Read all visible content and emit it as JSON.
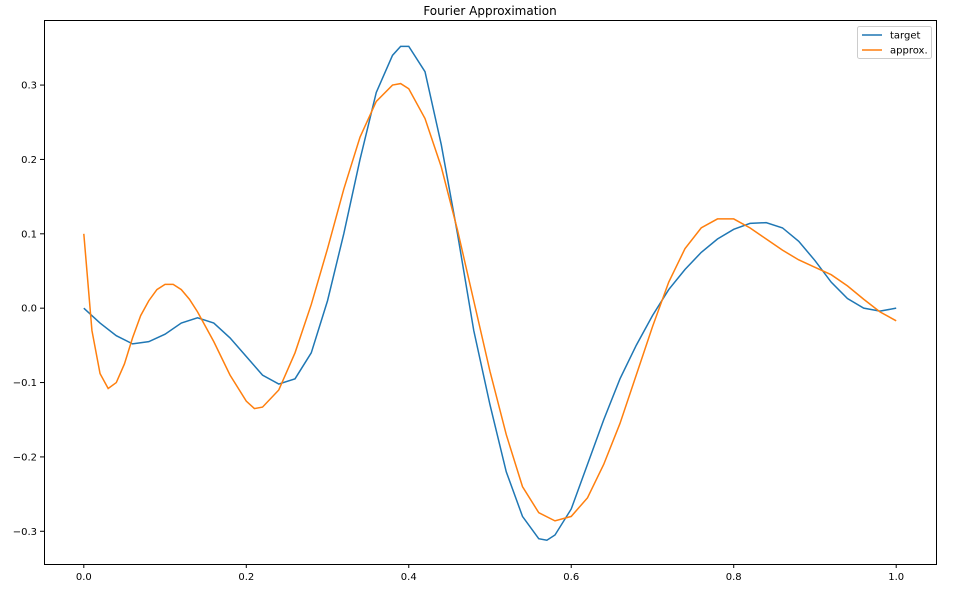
{
  "chart_data": {
    "type": "line",
    "title": "Fourier Approximation",
    "xlabel": "",
    "ylabel": "",
    "xlim": [
      -0.049,
      1.049
    ],
    "ylim": [
      -0.344,
      0.3875
    ],
    "xticks": [
      0.0,
      0.2,
      0.4,
      0.6,
      0.8,
      1.0
    ],
    "xtick_labels": [
      "0.0",
      "0.2",
      "0.4",
      "0.6",
      "0.8",
      "1.0"
    ],
    "yticks": [
      -0.3,
      -0.2,
      -0.1,
      0.0,
      0.1,
      0.2,
      0.3
    ],
    "ytick_labels": [
      "−0.3",
      "−0.2",
      "−0.1",
      "0.0",
      "0.1",
      "0.2",
      "0.3"
    ],
    "grid": false,
    "legend_position": "top-right",
    "series": [
      {
        "name": "target",
        "color": "#1f77b4",
        "x": [
          0,
          0.02,
          0.04,
          0.06,
          0.08,
          0.1,
          0.12,
          0.14,
          0.16,
          0.18,
          0.2,
          0.22,
          0.24,
          0.26,
          0.28,
          0.3,
          0.32,
          0.34,
          0.36,
          0.38,
          0.39,
          0.4,
          0.42,
          0.44,
          0.46,
          0.48,
          0.5,
          0.52,
          0.54,
          0.56,
          0.57,
          0.58,
          0.6,
          0.62,
          0.64,
          0.66,
          0.68,
          0.7,
          0.72,
          0.74,
          0.76,
          0.78,
          0.8,
          0.82,
          0.84,
          0.86,
          0.88,
          0.9,
          0.92,
          0.94,
          0.96,
          0.98,
          1.0
        ],
        "y": [
          0,
          -0.02,
          -0.037,
          -0.048,
          -0.045,
          -0.035,
          -0.02,
          -0.013,
          -0.02,
          -0.04,
          -0.065,
          -0.09,
          -0.102,
          -0.095,
          -0.06,
          0.01,
          0.1,
          0.2,
          0.29,
          0.34,
          0.352,
          0.352,
          0.318,
          0.22,
          0.1,
          -0.03,
          -0.13,
          -0.22,
          -0.28,
          -0.31,
          -0.312,
          -0.305,
          -0.27,
          -0.21,
          -0.15,
          -0.095,
          -0.05,
          -0.01,
          0.025,
          0.052,
          0.075,
          0.093,
          0.106,
          0.114,
          0.115,
          0.108,
          0.09,
          0.064,
          0.035,
          0.013,
          0.0,
          -0.004,
          0.0
        ]
      },
      {
        "name": "approx.",
        "color": "#ff7f0e",
        "x": [
          0,
          0.01,
          0.02,
          0.03,
          0.04,
          0.05,
          0.06,
          0.07,
          0.08,
          0.09,
          0.1,
          0.11,
          0.12,
          0.13,
          0.14,
          0.16,
          0.18,
          0.2,
          0.21,
          0.22,
          0.24,
          0.26,
          0.28,
          0.3,
          0.32,
          0.34,
          0.36,
          0.38,
          0.39,
          0.4,
          0.42,
          0.44,
          0.46,
          0.48,
          0.5,
          0.52,
          0.54,
          0.56,
          0.58,
          0.6,
          0.62,
          0.64,
          0.66,
          0.68,
          0.7,
          0.72,
          0.74,
          0.76,
          0.78,
          0.8,
          0.82,
          0.84,
          0.86,
          0.88,
          0.9,
          0.92,
          0.94,
          0.96,
          0.98,
          1.0
        ],
        "y": [
          0.1,
          -0.03,
          -0.088,
          -0.108,
          -0.1,
          -0.075,
          -0.04,
          -0.01,
          0.01,
          0.025,
          0.032,
          0.032,
          0.025,
          0.012,
          -0.005,
          -0.045,
          -0.09,
          -0.125,
          -0.135,
          -0.133,
          -0.11,
          -0.06,
          0.005,
          0.08,
          0.16,
          0.23,
          0.278,
          0.3,
          0.302,
          0.295,
          0.255,
          0.19,
          0.105,
          0.01,
          -0.085,
          -0.17,
          -0.24,
          -0.275,
          -0.286,
          -0.28,
          -0.255,
          -0.21,
          -0.155,
          -0.09,
          -0.025,
          0.035,
          0.08,
          0.108,
          0.12,
          0.12,
          0.108,
          0.093,
          0.078,
          0.065,
          0.055,
          0.045,
          0.03,
          0.012,
          -0.005,
          -0.017
        ]
      }
    ]
  }
}
